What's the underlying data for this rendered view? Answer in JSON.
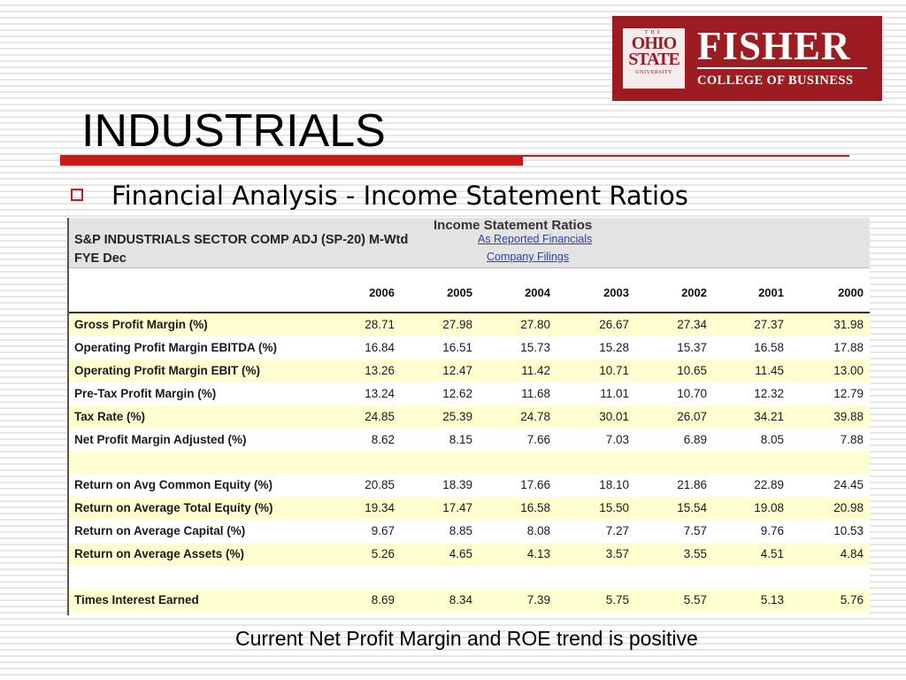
{
  "logo": {
    "osu_the": "THE",
    "osu_line1": "OHIO",
    "osu_line2": "STATE",
    "osu_univ": "UNIVERSITY",
    "fisher": "FISHER",
    "college": "COLLEGE OF BUSINESS",
    "color": "#9d1c22"
  },
  "slide": {
    "title": "INDUSTRIALS",
    "bullet": "Financial Analysis - Income Statement Ratios",
    "caption": "Current Net Profit Margin and ROE trend is positive",
    "accent_color": "#cc1a1a"
  },
  "table": {
    "title": "Income Statement Ratios",
    "company": "S&P INDUSTRIALS SECTOR COMP ADJ (SP-20) M-Wtd",
    "fye": "FYE Dec",
    "link1": "As Reported Financials",
    "link2": "Company Filings",
    "years": [
      "2006",
      "2005",
      "2004",
      "2003",
      "2002",
      "2001",
      "2000"
    ],
    "rows": [
      {
        "label": "Gross Profit Margin (%)",
        "values": [
          "28.71",
          "27.98",
          "27.80",
          "26.67",
          "27.34",
          "27.37",
          "31.98"
        ]
      },
      {
        "label": "Operating Profit Margin EBITDA (%)",
        "values": [
          "16.84",
          "16.51",
          "15.73",
          "15.28",
          "15.37",
          "16.58",
          "17.88"
        ]
      },
      {
        "label": "Operating Profit Margin EBIT (%)",
        "values": [
          "13.26",
          "12.47",
          "11.42",
          "10.71",
          "10.65",
          "11.45",
          "13.00"
        ]
      },
      {
        "label": "Pre-Tax Profit Margin (%)",
        "values": [
          "13.24",
          "12.62",
          "11.68",
          "11.01",
          "10.70",
          "12.32",
          "12.79"
        ]
      },
      {
        "label": "Tax Rate (%)",
        "values": [
          "24.85",
          "25.39",
          "24.78",
          "30.01",
          "26.07",
          "34.21",
          "39.88"
        ]
      },
      {
        "label": "Net Profit Margin Adjusted (%)",
        "values": [
          "8.62",
          "8.15",
          "7.66",
          "7.03",
          "6.89",
          "8.05",
          "7.88"
        ]
      },
      {
        "label": "",
        "values": [
          "",
          "",
          "",
          "",
          "",
          "",
          ""
        ]
      },
      {
        "label": "Return on Avg Common Equity (%)",
        "values": [
          "20.85",
          "18.39",
          "17.66",
          "18.10",
          "21.86",
          "22.89",
          "24.45"
        ]
      },
      {
        "label": "Return on Average Total Equity (%)",
        "values": [
          "19.34",
          "17.47",
          "16.58",
          "15.50",
          "15.54",
          "19.08",
          "20.98"
        ]
      },
      {
        "label": "Return on Average Capital (%)",
        "values": [
          "9.67",
          "8.85",
          "8.08",
          "7.27",
          "7.57",
          "9.76",
          "10.53"
        ]
      },
      {
        "label": "Return on Average Assets (%)",
        "values": [
          "5.26",
          "4.65",
          "4.13",
          "3.57",
          "3.55",
          "4.51",
          "4.84"
        ]
      },
      {
        "label": "",
        "values": [
          "",
          "",
          "",
          "",
          "",
          "",
          ""
        ]
      },
      {
        "label": "Times Interest Earned",
        "values": [
          "8.69",
          "8.34",
          "7.39",
          "5.75",
          "5.57",
          "5.13",
          "5.76"
        ]
      }
    ]
  }
}
